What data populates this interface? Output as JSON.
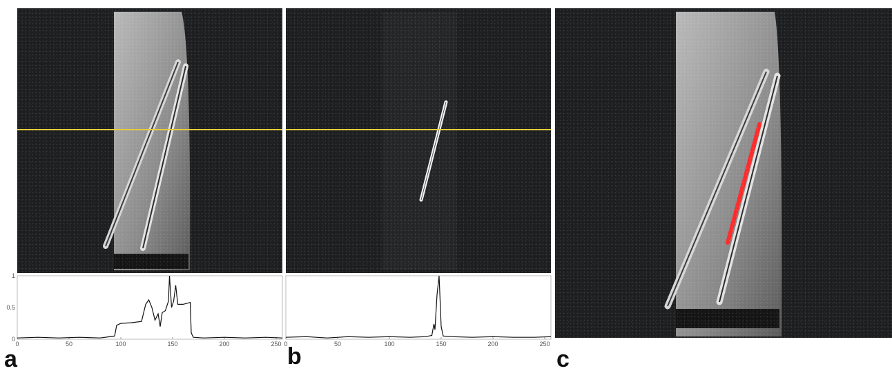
{
  "figure": {
    "panels": [
      {
        "id": "a",
        "label": "a"
      },
      {
        "id": "b",
        "label": "b"
      },
      {
        "id": "c",
        "label": "c"
      }
    ],
    "colors": {
      "yellow_line": "#e4cc35",
      "needle_track": "#ff2a2a",
      "profile": "#111111"
    }
  },
  "chart_data": [
    {
      "type": "line",
      "panel": "a",
      "x_ticks": [
        "0",
        "50",
        "100",
        "150",
        "200",
        "250"
      ],
      "y_ticks": [
        "0",
        "0.5",
        "1"
      ],
      "xlim": [
        0,
        256
      ],
      "ylim": [
        0,
        1
      ],
      "series": [
        {
          "x": [
            0,
            20,
            40,
            60,
            80,
            94,
            96,
            100,
            110,
            120,
            124,
            127,
            130,
            133,
            136,
            138,
            140,
            143,
            146,
            147,
            149,
            151,
            153,
            155,
            160,
            165,
            167,
            168,
            170,
            180,
            200,
            220,
            240,
            256
          ],
          "y": [
            0.02,
            0.03,
            0.02,
            0.03,
            0.02,
            0.05,
            0.22,
            0.25,
            0.26,
            0.28,
            0.55,
            0.62,
            0.5,
            0.3,
            0.4,
            0.2,
            0.42,
            0.45,
            0.6,
            1.0,
            0.5,
            0.6,
            0.85,
            0.55,
            0.55,
            0.57,
            0.58,
            0.1,
            0.03,
            0.02,
            0.03,
            0.02,
            0.03,
            0.02
          ]
        }
      ]
    },
    {
      "type": "line",
      "panel": "b",
      "x_ticks": [
        "0",
        "50",
        "100",
        "150",
        "200",
        "250"
      ],
      "y_ticks": [],
      "xlim": [
        0,
        256
      ],
      "ylim": [
        0,
        1
      ],
      "series": [
        {
          "x": [
            0,
            20,
            40,
            60,
            80,
            100,
            120,
            135,
            141,
            143,
            144,
            146,
            148,
            150,
            152,
            160,
            180,
            200,
            220,
            240,
            256
          ],
          "y": [
            0.03,
            0.04,
            0.02,
            0.04,
            0.03,
            0.04,
            0.03,
            0.04,
            0.06,
            0.24,
            0.15,
            0.7,
            1.0,
            0.2,
            0.05,
            0.04,
            0.03,
            0.04,
            0.03,
            0.03,
            0.04
          ]
        }
      ]
    }
  ]
}
